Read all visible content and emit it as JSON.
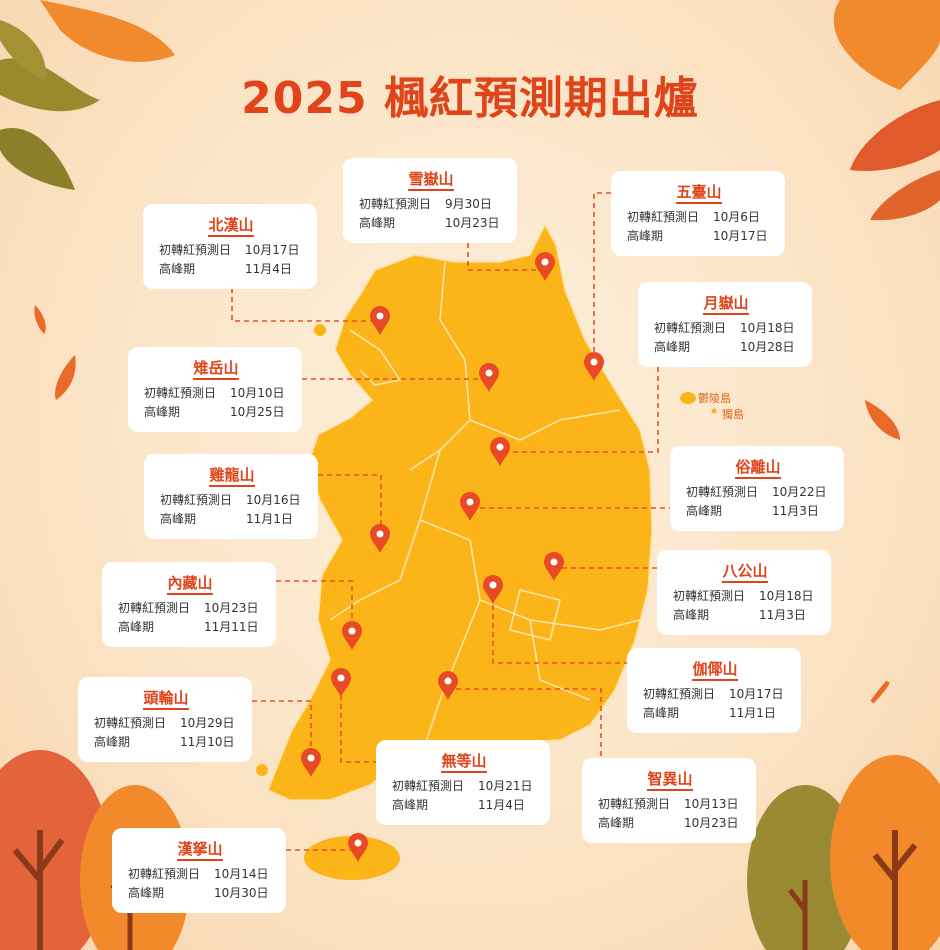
{
  "title": "2025 楓紅預測期出爐",
  "labels": {
    "first_red": "初轉紅預測日",
    "peak": "高峰期"
  },
  "islands": [
    "鬱陵島",
    "獨島"
  ],
  "colors": {
    "title": "#e0441b",
    "map": "#fbb518",
    "pin": "#e84a26",
    "card": "#ffffff"
  },
  "mountains": [
    {
      "name": "雪嶽山",
      "first_red": "9月30日",
      "peak": "10月23日"
    },
    {
      "name": "北漢山",
      "first_red": "10月17日",
      "peak": "11月4日"
    },
    {
      "name": "五臺山",
      "first_red": "10月6日",
      "peak": "10月17日"
    },
    {
      "name": "月嶽山",
      "first_red": "10月18日",
      "peak": "10月28日"
    },
    {
      "name": "雉岳山",
      "first_red": "10月10日",
      "peak": "10月25日"
    },
    {
      "name": "雞龍山",
      "first_red": "10月16日",
      "peak": "11月1日"
    },
    {
      "name": "俗離山",
      "first_red": "10月22日",
      "peak": "11月3日"
    },
    {
      "name": "內藏山",
      "first_red": "10月23日",
      "peak": "11月11日"
    },
    {
      "name": "八公山",
      "first_red": "10月18日",
      "peak": "11月3日"
    },
    {
      "name": "伽倻山",
      "first_red": "10月17日",
      "peak": "11月1日"
    },
    {
      "name": "頭輪山",
      "first_red": "10月29日",
      "peak": "11月10日"
    },
    {
      "name": "無等山",
      "first_red": "10月21日",
      "peak": "11月4日"
    },
    {
      "name": "智異山",
      "first_red": "10月13日",
      "peak": "10月23日"
    },
    {
      "name": "漢拏山",
      "first_red": "10月14日",
      "peak": "10月30日"
    }
  ]
}
